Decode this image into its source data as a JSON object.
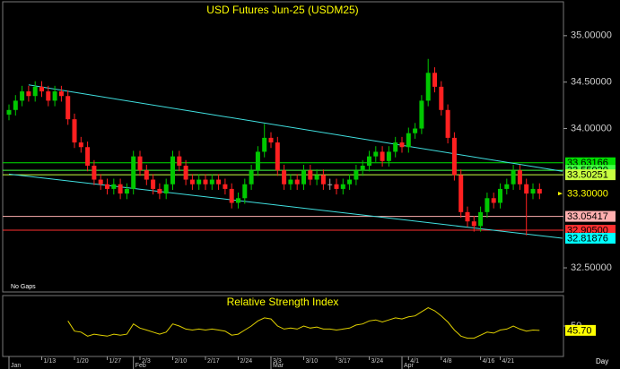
{
  "chart_data": {
    "type": "candlestick",
    "title": "USD  Futures Jun-25  (USDM25)",
    "note": "No Gaps",
    "period": "Day",
    "up_color": "#00c800",
    "down_color": "#ff2020",
    "ylim": [
      32.24,
      35.365
    ],
    "yticks": [
      {
        "value": 35,
        "label": "35.00000"
      },
      {
        "value": 34.5,
        "label": "34.50000"
      },
      {
        "value": 34,
        "label": "34.00000"
      },
      {
        "value": 32.5,
        "label": "32.50000"
      }
    ],
    "categories": [
      null,
      null,
      null,
      null,
      null,
      "1/13",
      null,
      null,
      null,
      null,
      "1/20",
      null,
      null,
      null,
      null,
      "1/27",
      null,
      null,
      null,
      null,
      "2/3",
      null,
      null,
      null,
      null,
      "2/10",
      null,
      null,
      null,
      null,
      "2/17",
      null,
      null,
      null,
      null,
      "2/24",
      null,
      null,
      null,
      null,
      "3/3",
      null,
      null,
      null,
      null,
      "3/10",
      null,
      null,
      null,
      null,
      "3/17",
      null,
      null,
      null,
      null,
      "3/24",
      null,
      null,
      null,
      null,
      null,
      "4/1",
      null,
      null,
      null,
      null,
      "4/8",
      null,
      null,
      null,
      null,
      null,
      "4/16",
      null,
      null,
      "4/21",
      null,
      null,
      null,
      null,
      null,
      null
    ],
    "months": [
      {
        "value": 0,
        "label": "Jan"
      },
      {
        "value": 19,
        "label": "Feb"
      },
      {
        "value": 40,
        "label": "Mar"
      },
      {
        "value": 60,
        "label": "Apr"
      }
    ],
    "open": [
      34.15,
      34.2,
      34.3,
      34.4,
      34.35,
      34.45,
      34.4,
      34.3,
      34.4,
      34.35,
      34.1,
      33.85,
      33.8,
      33.6,
      33.45,
      33.4,
      33.35,
      33.4,
      33.3,
      33.35,
      33.7,
      33.55,
      33.45,
      33.35,
      33.3,
      33.4,
      33.7,
      33.6,
      33.45,
      33.4,
      33.45,
      33.4,
      33.45,
      33.4,
      33.35,
      33.2,
      33.25,
      33.4,
      33.55,
      33.75,
      33.9,
      33.85,
      33.55,
      33.4,
      33.45,
      33.4,
      33.55,
      33.45,
      33.5,
      33.4,
      33.4,
      33.35,
      33.4,
      33.45,
      33.55,
      33.6,
      33.7,
      33.75,
      33.65,
      33.75,
      33.85,
      33.8,
      33.95,
      34.0,
      34.3,
      34.6,
      34.45,
      34.2,
      33.9,
      33.5,
      33.1,
      33.0,
      32.95,
      33.1,
      33.25,
      33.2,
      33.35,
      33.4,
      33.55,
      33.4,
      33.3,
      33.35
    ],
    "high": [
      34.26,
      34.36,
      34.46,
      34.46,
      34.51,
      34.51,
      34.46,
      34.46,
      34.46,
      34.41,
      34.16,
      33.91,
      33.86,
      33.66,
      33.51,
      33.46,
      33.46,
      33.46,
      33.41,
      33.76,
      33.76,
      33.61,
      33.51,
      33.41,
      33.46,
      33.76,
      33.76,
      33.66,
      33.51,
      33.51,
      33.51,
      33.51,
      33.51,
      33.46,
      33.41,
      33.31,
      33.46,
      33.61,
      33.81,
      34.05,
      33.96,
      33.91,
      33.61,
      33.51,
      33.51,
      33.61,
      33.61,
      33.56,
      33.56,
      33.46,
      33.46,
      33.46,
      33.51,
      33.61,
      33.66,
      33.76,
      33.81,
      33.81,
      33.81,
      33.91,
      33.91,
      34.01,
      34.06,
      34.36,
      34.75,
      34.66,
      34.51,
      34.26,
      33.96,
      33.56,
      33.16,
      33.06,
      33.16,
      33.31,
      33.31,
      33.41,
      33.46,
      33.61,
      33.61,
      33.46,
      33.41,
      33.41
    ],
    "low": [
      34.09,
      34.14,
      34.24,
      34.29,
      34.29,
      34.34,
      34.24,
      34.24,
      34.29,
      34.04,
      33.79,
      33.74,
      33.54,
      33.39,
      33.34,
      33.29,
      33.29,
      33.24,
      33.24,
      33.29,
      33.49,
      33.39,
      33.29,
      33.24,
      33.24,
      33.34,
      33.54,
      33.39,
      33.34,
      33.34,
      33.34,
      33.34,
      33.34,
      33.29,
      33.14,
      33.14,
      33.19,
      33.34,
      33.49,
      33.69,
      33.79,
      33.49,
      33.34,
      33.34,
      33.34,
      33.34,
      33.39,
      33.39,
      33.34,
      33.34,
      33.29,
      33.29,
      33.34,
      33.39,
      33.49,
      33.54,
      33.64,
      33.59,
      33.59,
      33.69,
      33.74,
      33.74,
      33.89,
      33.94,
      34.24,
      34.39,
      34.14,
      33.84,
      33.44,
      33.04,
      32.94,
      32.89,
      32.89,
      33.04,
      33.14,
      33.14,
      33.29,
      33.34,
      33.34,
      32.85,
      33.24,
      33.24
    ],
    "close": [
      34.2,
      34.3,
      34.4,
      34.35,
      34.45,
      34.4,
      34.3,
      34.4,
      34.35,
      34.1,
      33.85,
      33.8,
      33.6,
      33.45,
      33.4,
      33.35,
      33.4,
      33.3,
      33.35,
      33.7,
      33.55,
      33.45,
      33.35,
      33.3,
      33.4,
      33.7,
      33.6,
      33.45,
      33.4,
      33.45,
      33.4,
      33.45,
      33.4,
      33.35,
      33.2,
      33.25,
      33.4,
      33.55,
      33.75,
      33.9,
      33.85,
      33.55,
      33.4,
      33.45,
      33.4,
      33.55,
      33.45,
      33.5,
      33.4,
      33.4,
      33.35,
      33.4,
      33.45,
      33.55,
      33.6,
      33.7,
      33.75,
      33.65,
      33.75,
      33.85,
      33.8,
      33.95,
      34.0,
      34.3,
      34.6,
      34.45,
      34.2,
      33.9,
      33.5,
      33.1,
      33.0,
      32.95,
      33.1,
      33.25,
      33.2,
      33.35,
      33.4,
      33.55,
      33.4,
      33.3,
      33.35,
      33.3
    ],
    "levels": [
      {
        "value": 33.63166,
        "label": "33.63166",
        "color": "#00e000",
        "line": true
      },
      {
        "value": 33.5502,
        "label": "33.55020",
        "color": "#40ff40",
        "line": true
      },
      {
        "value": 33.50251,
        "label": "33.50251",
        "color": "#c8ff40",
        "line": true
      },
      {
        "value": 33.3,
        "label": "33.30000",
        "color": "#ffff00",
        "line": false
      },
      {
        "value": 33.05417,
        "label": "33.05417",
        "color": "#ffb0b0",
        "line": true
      },
      {
        "value": 32.905,
        "label": "32.90500",
        "color": "#ff3030",
        "line": true
      },
      {
        "value": 32.81876,
        "label": "32.81876",
        "color": "#00ffff",
        "line": false
      }
    ],
    "trendlines": [
      {
        "x": [
          3,
          84.5
        ],
        "values": [
          34.47,
          33.54
        ],
        "color": "#40e0e0"
      },
      {
        "x": [
          0,
          84.5
        ],
        "values": [
          33.51,
          32.81876
        ],
        "color": "#40e0e0"
      }
    ],
    "rsi": {
      "title": "Relative Strength Index",
      "color": "#e0d000",
      "ylim": [
        20,
        80
      ],
      "yticks": [
        50
      ],
      "values": [
        null,
        null,
        null,
        null,
        null,
        null,
        null,
        null,
        null,
        55,
        45,
        44,
        40,
        42,
        41,
        40,
        42,
        41,
        42,
        52,
        48,
        46,
        44,
        42,
        44,
        52,
        50,
        47,
        46,
        47,
        46,
        47,
        46,
        45,
        41,
        42,
        46,
        50,
        55,
        58,
        57,
        50,
        47,
        48,
        47,
        50,
        48,
        49,
        47,
        47,
        46,
        47,
        48,
        51,
        52,
        55,
        56,
        54,
        56,
        58,
        57,
        59,
        60,
        64,
        68,
        65,
        60,
        54,
        46,
        40,
        38,
        38,
        41,
        44,
        43,
        46,
        47,
        50,
        47,
        45,
        46,
        45.7
      ],
      "last_label": "45.70"
    }
  }
}
